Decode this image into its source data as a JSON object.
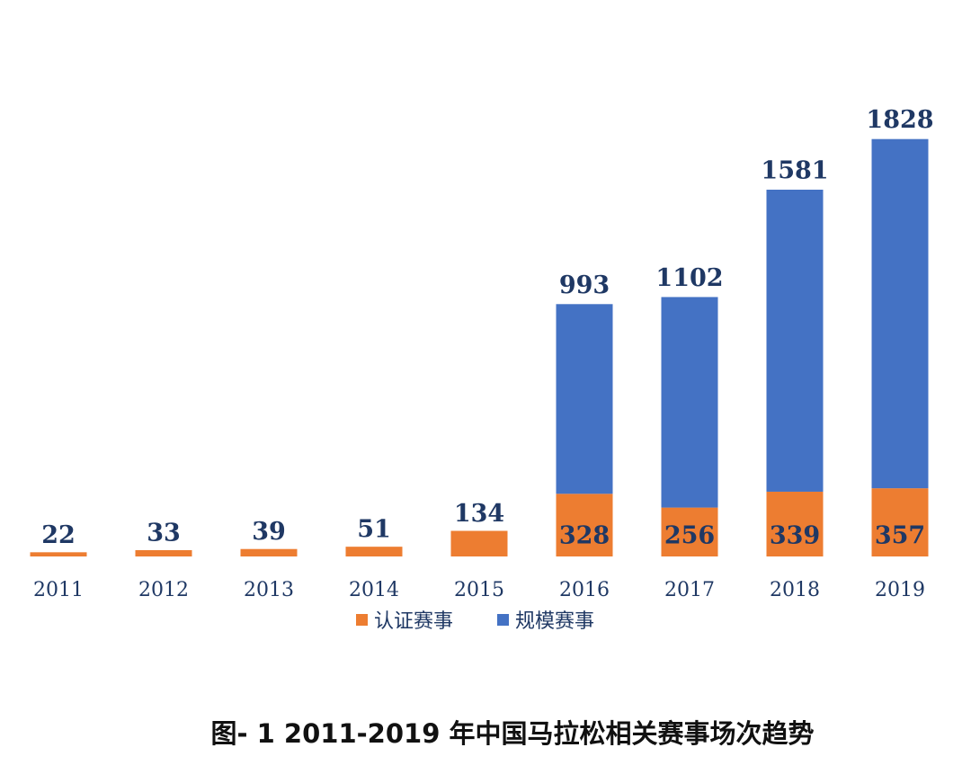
{
  "chart_data": {
    "type": "stacked_bar",
    "title": "图- 1 2011-2019 年中国马拉松相关赛事场次趋势",
    "categories": [
      "2011",
      "2012",
      "2013",
      "2014",
      "2015",
      "2016",
      "2017",
      "2018",
      "2019"
    ],
    "series": [
      {
        "name": "认证赛事",
        "color": "#ed7d31",
        "values": [
          22,
          33,
          39,
          51,
          134,
          328,
          256,
          339,
          357
        ]
      },
      {
        "name": "规模赛事",
        "color": "#4472c4",
        "values": [
          null,
          null,
          null,
          null,
          null,
          993,
          1102,
          1581,
          1828
        ]
      }
    ]
  }
}
